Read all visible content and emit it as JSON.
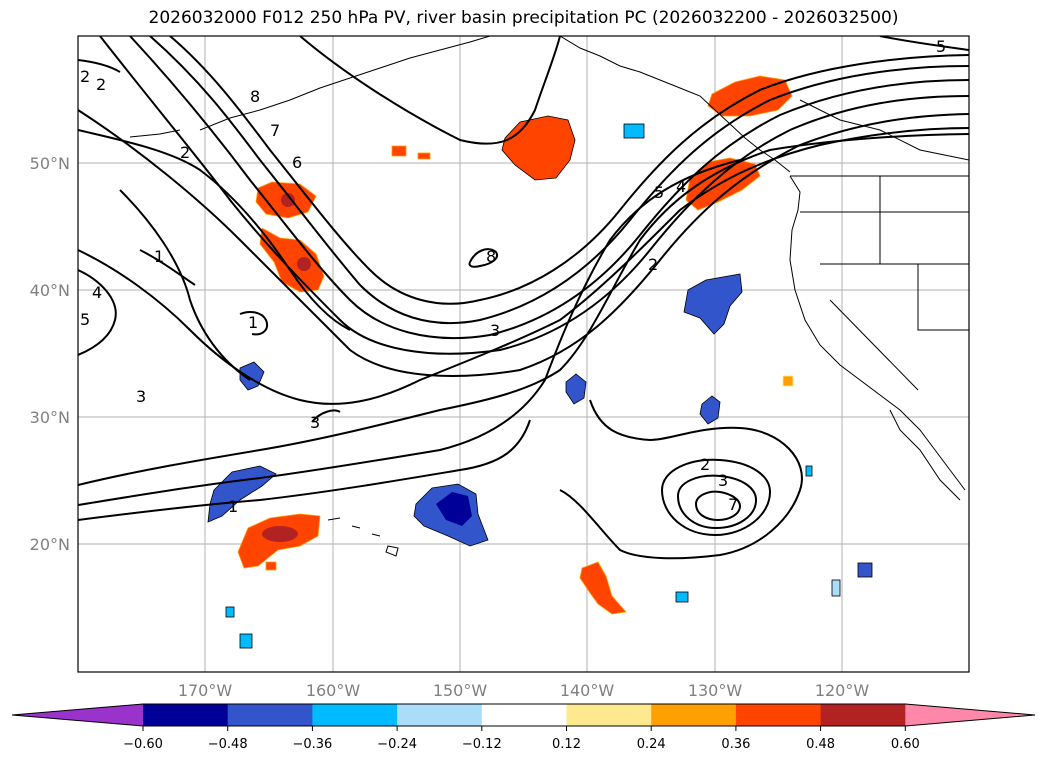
{
  "title": "2026032000 F012 250 hPa PV, river basin precipitation PC (2026032200 - 2026032500)",
  "map": {
    "lat_labels": [
      "50°N",
      "40°N",
      "30°N",
      "20°N"
    ],
    "lon_labels": [
      "170°W",
      "160°W",
      "150°W",
      "140°W",
      "130°W",
      "120°W"
    ],
    "pv_contour_labels": [
      "8",
      "7",
      "6",
      "5",
      "4",
      "3",
      "2",
      "1",
      "2",
      "3",
      "2",
      "3",
      "5",
      "4",
      "3",
      "1",
      "2",
      "7",
      "1",
      "2",
      "5",
      "8"
    ],
    "colors": {
      "purple": "#9933cc",
      "navy": "#000099",
      "blue": "#3355cc",
      "deepsky": "#00bbff",
      "lightblue": "#aaddf8",
      "white": "#ffffff",
      "lightyellow": "#ffe98f",
      "orange": "#ff9f00",
      "orangered": "#ff4400",
      "firebrick": "#b22222",
      "pink": "#ff88aa"
    }
  },
  "colorbar": {
    "ticks": [
      "−0.60",
      "−0.48",
      "−0.36",
      "−0.24",
      "−0.12",
      "0.12",
      "0.24",
      "0.36",
      "0.48",
      "0.60"
    ],
    "colors": [
      "#9933cc",
      "#000099",
      "#3355cc",
      "#00bbff",
      "#aaddf8",
      "#ffffff",
      "#ffe98f",
      "#ff9f00",
      "#ff4400",
      "#b22222",
      "#ff88aa"
    ]
  }
}
